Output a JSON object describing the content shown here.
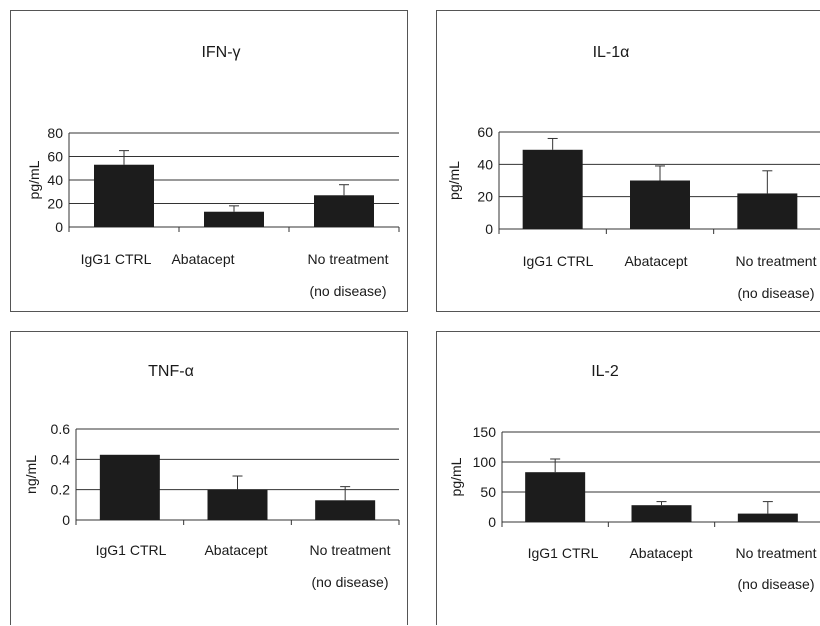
{
  "chart_data": [
    {
      "type": "bar",
      "title": "IFN-γ",
      "ylabel": "pg/mL",
      "ylim": [
        0,
        80
      ],
      "yticks": [
        "0",
        "20",
        "40",
        "60",
        "80"
      ],
      "categories": [
        "IgG1 CTRL",
        "Abatacept",
        "No treatment"
      ],
      "category_sub": [
        "",
        "",
        "(no disease)"
      ],
      "values": [
        53,
        13,
        27
      ],
      "errors": [
        12,
        5,
        9
      ],
      "grid": true,
      "bar_color": "#1c1c1c"
    },
    {
      "type": "bar",
      "title": "IL-1α",
      "ylabel": "pg/mL",
      "ylim": [
        0,
        60
      ],
      "yticks": [
        "0",
        "20",
        "40",
        "60"
      ],
      "categories": [
        "IgG1 CTRL",
        "Abatacept",
        "No treatment"
      ],
      "category_sub": [
        "",
        "",
        "(no disease)"
      ],
      "values": [
        49,
        30,
        22
      ],
      "errors": [
        7,
        9,
        14
      ],
      "grid": true,
      "bar_color": "#1c1c1c"
    },
    {
      "type": "bar",
      "title": "TNF-α",
      "ylabel": "ng/mL",
      "ylim": [
        0,
        0.6
      ],
      "yticks": [
        "0",
        "0.2",
        "0.4",
        "0.6"
      ],
      "categories": [
        "IgG1 CTRL",
        "Abatacept",
        "No treatment"
      ],
      "category_sub": [
        "",
        "",
        "(no disease)"
      ],
      "values": [
        0.43,
        0.2,
        0.13
      ],
      "errors": [
        0,
        0.09,
        0.09
      ],
      "grid": true,
      "bar_color": "#1c1c1c"
    },
    {
      "type": "bar",
      "title": "IL-2",
      "ylabel": "pg/mL",
      "ylim": [
        0,
        150
      ],
      "yticks": [
        "0",
        "50",
        "100",
        "150"
      ],
      "categories": [
        "IgG1 CTRL",
        "Abatacept",
        "No treatment"
      ],
      "category_sub": [
        "",
        "",
        "(no disease)"
      ],
      "values": [
        83,
        28,
        14
      ],
      "errors": [
        22,
        6,
        20
      ],
      "grid": true,
      "bar_color": "#1c1c1c"
    }
  ]
}
